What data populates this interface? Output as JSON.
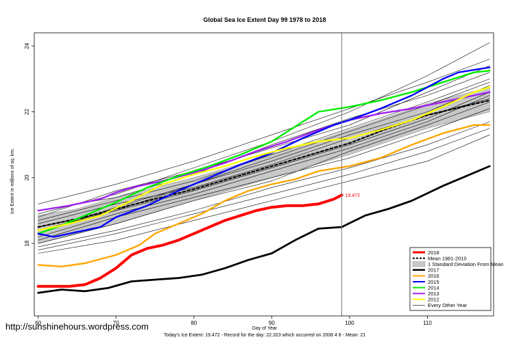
{
  "chart_data": {
    "type": "line",
    "title": "Global Sea Ice Extent Day 99 1978 to 2018",
    "xlabel": "Day of Year",
    "ylabel": "Ice Extent in millions of sq. km.",
    "xlim": [
      59.5,
      118.5
    ],
    "ylim": [
      15.8,
      24.4
    ],
    "x_ticks": [
      60,
      70,
      80,
      90,
      100,
      110
    ],
    "y_ticks": [
      18,
      20,
      22,
      24
    ],
    "x_tick_labels": [
      "60",
      "70",
      "80",
      "90",
      "100",
      "110"
    ],
    "y_tick_labels": [
      "18",
      "20",
      "22",
      "24"
    ],
    "marker_day": 99,
    "current_value_label": "19.472",
    "footer": "Today's Ice Extent: 19.472  - Record for the day: 22.323 which occurred on 2008 4 8  - Mean: 21",
    "watermark": "http://sunshinehours.wordpress.com",
    "legend": [
      {
        "label": "2018",
        "color": "#ff0000",
        "kind": "line",
        "width": 3
      },
      {
        "label": "Mean 1981-2010",
        "color": "#000000",
        "kind": "dash",
        "width": 2
      },
      {
        "label": "1 Standard Deviation From Mean",
        "color": "#c8c8c8",
        "kind": "band",
        "width": 6
      },
      {
        "label": "2017",
        "color": "#000000",
        "kind": "line",
        "width": 2.5
      },
      {
        "label": "2016",
        "color": "#ffa500",
        "kind": "line",
        "width": 2
      },
      {
        "label": "2015",
        "color": "#0000ff",
        "kind": "line",
        "width": 2
      },
      {
        "label": "2014",
        "color": "#00ee00",
        "kind": "line",
        "width": 2
      },
      {
        "label": "2013",
        "color": "#a020f0",
        "kind": "line",
        "width": 2
      },
      {
        "label": "2012",
        "color": "#ffff00",
        "kind": "line",
        "width": 2
      },
      {
        "label": "Every Other Year",
        "color": "#000000",
        "kind": "line",
        "width": 0.6
      }
    ],
    "band": {
      "x": [
        60,
        65,
        70,
        75,
        80,
        85,
        90,
        95,
        100,
        105,
        110,
        118
      ],
      "upper": [
        18.85,
        19.05,
        19.4,
        19.7,
        20.0,
        20.35,
        20.7,
        21.05,
        21.45,
        21.85,
        22.25,
        22.75
      ],
      "lower": [
        18.0,
        18.3,
        18.6,
        18.95,
        19.3,
        19.65,
        20.0,
        20.35,
        20.7,
        21.1,
        21.5,
        22.0
      ]
    },
    "series": [
      {
        "name": "Mean 1981-2010",
        "color": "#000000",
        "width": 2.2,
        "dash": "4,3",
        "x": [
          60,
          65,
          70,
          75,
          80,
          85,
          90,
          95,
          100,
          105,
          110,
          118
        ],
        "y": [
          18.5,
          18.75,
          19.05,
          19.35,
          19.65,
          20.0,
          20.35,
          20.7,
          21.05,
          21.5,
          21.9,
          22.35
        ]
      },
      {
        "name": "2013",
        "color": "#a020f0",
        "width": 2.4,
        "x": [
          60,
          64,
          68,
          70,
          72,
          76,
          80,
          84,
          88,
          92,
          96,
          100,
          104,
          108,
          112,
          116,
          118
        ],
        "y": [
          19.0,
          19.15,
          19.35,
          19.55,
          19.7,
          19.9,
          20.15,
          20.45,
          20.8,
          21.1,
          21.45,
          21.75,
          21.95,
          22.1,
          22.3,
          22.5,
          22.6
        ]
      },
      {
        "name": "2014",
        "color": "#00ee00",
        "width": 2.4,
        "x": [
          60,
          63,
          66,
          70,
          74,
          78,
          82,
          86,
          90,
          94,
          96,
          100,
          104,
          108,
          112,
          116,
          118
        ],
        "y": [
          18.3,
          18.55,
          18.85,
          19.25,
          19.7,
          20.05,
          20.35,
          20.7,
          21.1,
          21.7,
          22.0,
          22.15,
          22.35,
          22.6,
          22.9,
          23.2,
          23.25
        ]
      },
      {
        "name": "2015",
        "color": "#0000ff",
        "width": 2.4,
        "x": [
          60,
          62,
          65,
          68,
          70,
          74,
          78,
          82,
          86,
          90,
          94,
          98,
          100,
          104,
          108,
          112,
          114,
          118
        ],
        "y": [
          18.3,
          18.2,
          18.35,
          18.5,
          18.8,
          19.15,
          19.6,
          20.0,
          20.4,
          20.75,
          21.2,
          21.6,
          21.75,
          22.1,
          22.5,
          23.0,
          23.2,
          23.35
        ]
      },
      {
        "name": "2012",
        "color": "#ffff00",
        "width": 2.4,
        "x": [
          60,
          64,
          68,
          72,
          76,
          80,
          84,
          88,
          92,
          96,
          100,
          104,
          108,
          112,
          116,
          118
        ],
        "y": [
          18.4,
          18.6,
          18.85,
          19.3,
          19.8,
          20.1,
          20.35,
          20.65,
          20.9,
          21.1,
          21.2,
          21.45,
          21.75,
          22.15,
          22.6,
          22.75
        ]
      },
      {
        "name": "2016",
        "color": "#ffa500",
        "width": 2.4,
        "x": [
          60,
          63,
          66,
          70,
          73,
          75,
          78,
          81,
          84,
          87,
          90,
          93,
          96,
          100,
          104,
          108,
          112,
          116,
          118
        ],
        "y": [
          17.35,
          17.3,
          17.4,
          17.65,
          17.95,
          18.3,
          18.6,
          18.9,
          19.3,
          19.6,
          19.8,
          19.95,
          20.2,
          20.35,
          20.6,
          21.0,
          21.35,
          21.6,
          21.6
        ]
      },
      {
        "name": "2017",
        "color": "#000000",
        "width": 2.8,
        "x": [
          60,
          63,
          66,
          69,
          72,
          75,
          78,
          81,
          84,
          87,
          90,
          93,
          96,
          99,
          102,
          105,
          108,
          112,
          115,
          118
        ],
        "y": [
          16.5,
          16.6,
          16.55,
          16.65,
          16.85,
          16.9,
          16.95,
          17.05,
          17.25,
          17.5,
          17.7,
          18.1,
          18.45,
          18.5,
          18.85,
          19.05,
          19.3,
          19.75,
          20.05,
          20.35
        ]
      },
      {
        "name": "2018",
        "color": "#ff0000",
        "width": 4,
        "x": [
          60,
          62,
          64,
          66,
          68,
          70,
          72,
          74,
          76,
          78,
          80,
          82,
          84,
          86,
          88,
          90,
          92,
          94,
          96,
          98,
          99
        ],
        "y": [
          16.7,
          16.7,
          16.7,
          16.75,
          16.95,
          17.25,
          17.65,
          17.85,
          17.95,
          18.1,
          18.3,
          18.5,
          18.7,
          18.85,
          19.0,
          19.1,
          19.15,
          19.15,
          19.2,
          19.35,
          19.472
        ]
      }
    ],
    "other_years": [
      {
        "x": [
          60,
          70,
          80,
          90,
          100,
          110,
          118
        ],
        "y": [
          18.9,
          19.5,
          20.3,
          21.1,
          22.0,
          23.1,
          24.1
        ]
      },
      {
        "x": [
          60,
          70,
          80,
          90,
          100,
          110,
          118
        ],
        "y": [
          19.2,
          19.8,
          20.5,
          21.3,
          22.1,
          22.9,
          23.6
        ]
      },
      {
        "x": [
          60,
          70,
          80,
          90,
          100,
          110,
          118
        ],
        "y": [
          18.7,
          19.3,
          19.9,
          20.7,
          21.5,
          22.3,
          23.0
        ]
      },
      {
        "x": [
          60,
          70,
          80,
          90,
          100,
          110,
          118
        ],
        "y": [
          18.4,
          19.0,
          19.6,
          20.3,
          21.0,
          21.8,
          22.6
        ]
      },
      {
        "x": [
          60,
          70,
          80,
          90,
          100,
          110,
          118
        ],
        "y": [
          18.1,
          18.8,
          19.4,
          20.0,
          20.6,
          21.4,
          22.1
        ]
      },
      {
        "x": [
          60,
          70,
          80,
          90,
          100,
          110,
          118
        ],
        "y": [
          17.9,
          18.4,
          19.0,
          19.7,
          20.3,
          21.0,
          21.7
        ]
      },
      {
        "x": [
          60,
          70,
          80,
          90,
          100,
          110,
          118
        ],
        "y": [
          17.7,
          18.1,
          18.7,
          19.3,
          19.9,
          20.5,
          21.3
        ]
      },
      {
        "x": [
          60,
          70,
          80,
          90,
          100,
          110,
          118
        ],
        "y": [
          18.3,
          19.1,
          19.8,
          20.5,
          21.3,
          22.0,
          22.8
        ]
      },
      {
        "x": [
          60,
          70,
          80,
          90,
          100,
          110,
          118
        ],
        "y": [
          18.6,
          19.2,
          19.7,
          20.4,
          21.2,
          21.9,
          22.4
        ]
      },
      {
        "x": [
          60,
          70,
          80,
          90,
          100,
          110,
          118
        ],
        "y": [
          18.0,
          18.6,
          19.3,
          19.9,
          20.8,
          21.6,
          22.3
        ]
      },
      {
        "x": [
          60,
          70,
          80,
          90,
          100,
          110,
          118
        ],
        "y": [
          18.2,
          18.9,
          19.5,
          20.2,
          20.9,
          21.7,
          22.5
        ]
      },
      {
        "x": [
          60,
          70,
          80,
          90,
          100,
          110,
          118
        ],
        "y": [
          18.8,
          19.6,
          20.2,
          20.9,
          21.6,
          22.6,
          23.4
        ]
      },
      {
        "x": [
          60,
          70,
          80,
          90,
          100,
          110,
          118
        ],
        "y": [
          17.8,
          18.3,
          18.9,
          19.5,
          20.1,
          20.8,
          21.5
        ]
      },
      {
        "x": [
          60,
          70,
          80,
          90,
          100,
          110,
          118
        ],
        "y": [
          18.5,
          19.0,
          19.8,
          20.6,
          21.4,
          22.2,
          22.9
        ]
      },
      {
        "x": [
          60,
          70,
          80,
          90,
          100,
          110,
          118
        ],
        "y": [
          19.0,
          19.4,
          20.1,
          21.0,
          21.8,
          22.5,
          23.2
        ]
      }
    ]
  }
}
